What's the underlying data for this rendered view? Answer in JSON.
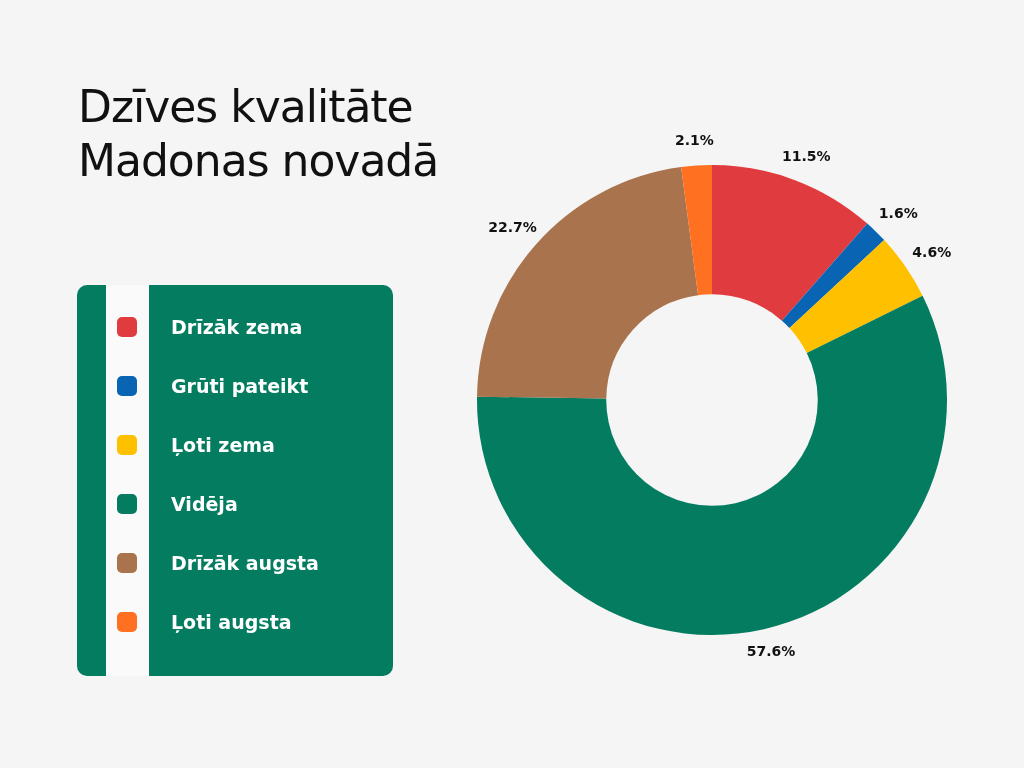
{
  "chart_data": {
    "type": "donut",
    "title": "Dzīves kvalitāte Madonas novadā",
    "categories": [
      "Drīzāk zema",
      "Grūti pateikt",
      "Ļoti zema",
      "Vidēja",
      "Drīzāk augsta",
      "Ļoti augsta"
    ],
    "values": [
      11.5,
      1.6,
      4.6,
      57.6,
      22.7,
      2.1
    ],
    "colors": [
      "#e03c40",
      "#0a64b4",
      "#ffc000",
      "#037c5f",
      "#a8734d",
      "#ff7020"
    ],
    "value_labels": [
      "11.5%",
      "1.6%",
      "4.6%",
      "57.6%",
      "22.7%",
      "2.1%"
    ],
    "legend": "left"
  }
}
